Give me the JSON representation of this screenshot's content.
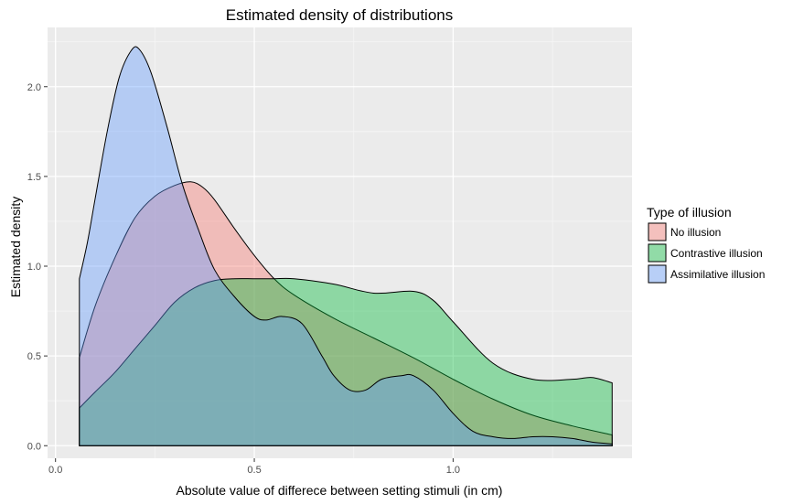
{
  "chart_data": {
    "type": "area",
    "title": "Estimated density of distributions",
    "xlabel": "Absolute value of differece between setting stimuli (in cm)",
    "ylabel": "Estimated density",
    "xlim": [
      -0.02,
      1.45
    ],
    "ylim": [
      -0.07,
      2.33
    ],
    "x_ticks": [
      {
        "value": 0.0,
        "label": "0.0"
      },
      {
        "value": 0.5,
        "label": "0.5"
      },
      {
        "value": 1.0,
        "label": "1.0"
      }
    ],
    "y_ticks": [
      {
        "value": 0.0,
        "label": "0.0"
      },
      {
        "value": 0.5,
        "label": "0.5"
      },
      {
        "value": 1.0,
        "label": "1.0"
      },
      {
        "value": 1.5,
        "label": "1.5"
      },
      {
        "value": 2.0,
        "label": "2.0"
      }
    ],
    "grid": true,
    "legend_title": "Type of illusion",
    "legend_position": "right",
    "series": [
      {
        "name": "No illusion",
        "color": "#F8766D",
        "x": [
          0.06,
          0.1,
          0.15,
          0.2,
          0.25,
          0.3,
          0.34,
          0.37,
          0.4,
          0.45,
          0.5,
          0.55,
          0.6,
          0.7,
          0.8,
          0.9,
          1.0,
          1.1,
          1.2,
          1.3,
          1.4
        ],
        "y": [
          0.49,
          0.78,
          1.05,
          1.27,
          1.39,
          1.45,
          1.47,
          1.44,
          1.37,
          1.21,
          1.06,
          0.93,
          0.84,
          0.71,
          0.6,
          0.49,
          0.37,
          0.26,
          0.17,
          0.11,
          0.06
        ]
      },
      {
        "name": "Contrastive illusion",
        "color": "#00BA38",
        "x": [
          0.06,
          0.1,
          0.15,
          0.2,
          0.25,
          0.3,
          0.35,
          0.4,
          0.45,
          0.5,
          0.55,
          0.6,
          0.7,
          0.8,
          0.9,
          0.95,
          1.0,
          1.1,
          1.2,
          1.3,
          1.35,
          1.4
        ],
        "y": [
          0.21,
          0.3,
          0.41,
          0.54,
          0.67,
          0.8,
          0.88,
          0.92,
          0.93,
          0.93,
          0.93,
          0.93,
          0.9,
          0.85,
          0.86,
          0.81,
          0.69,
          0.46,
          0.37,
          0.37,
          0.38,
          0.35
        ]
      },
      {
        "name": "Assimilative illusion",
        "color": "#619CFF",
        "x": [
          0.06,
          0.08,
          0.1,
          0.13,
          0.16,
          0.19,
          0.21,
          0.24,
          0.28,
          0.32,
          0.36,
          0.4,
          0.45,
          0.5,
          0.53,
          0.57,
          0.62,
          0.67,
          0.7,
          0.74,
          0.78,
          0.82,
          0.87,
          0.9,
          0.95,
          1.0,
          1.05,
          1.1,
          1.15,
          1.2,
          1.25,
          1.3,
          1.35,
          1.4
        ],
        "y": [
          0.93,
          1.13,
          1.38,
          1.75,
          2.05,
          2.2,
          2.21,
          2.08,
          1.78,
          1.45,
          1.2,
          0.98,
          0.83,
          0.72,
          0.7,
          0.72,
          0.68,
          0.5,
          0.39,
          0.31,
          0.31,
          0.37,
          0.39,
          0.39,
          0.31,
          0.18,
          0.08,
          0.05,
          0.04,
          0.05,
          0.05,
          0.04,
          0.02,
          0.01
        ]
      }
    ]
  }
}
